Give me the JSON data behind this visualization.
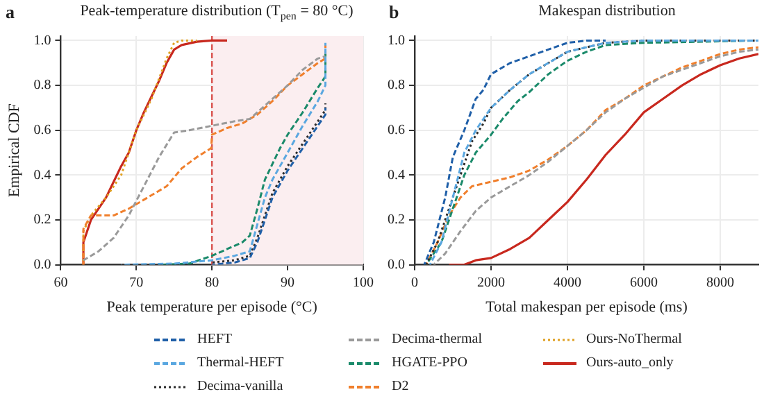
{
  "chart_data": [
    {
      "type": "line",
      "title": "Peak-temperature distribution (T$_{pen}$ = 80 °C)",
      "xlabel": "Peak temperature per episode (°C)",
      "ylabel": "Empirical CDF",
      "annotations": [
        "a"
      ],
      "xlim": [
        60,
        100
      ],
      "xticks": [
        60,
        70,
        80,
        90,
        100
      ],
      "ylim": [
        0,
        1.02
      ],
      "yticks": [
        {
          "value": 0,
          "label": "0.0"
        },
        {
          "value": 0.2,
          "label": "0.2"
        },
        {
          "value": 0.4,
          "label": "0.4"
        },
        {
          "value": 0.6,
          "label": "0.6"
        },
        {
          "value": 0.8,
          "label": "0.8"
        },
        {
          "value": 1,
          "label": "1.0"
        }
      ],
      "grid": true,
      "legend": "bottom",
      "marker": "none",
      "ref_lines": [
        {
          "axis": "x",
          "value": 80,
          "color": "#d9534f",
          "line_style": "dashed"
        }
      ],
      "bands": [
        {
          "axis": "x",
          "from": 80,
          "to": 100,
          "color": "#fbeef0"
        }
      ],
      "series": [
        {
          "name": "HEFT",
          "color": "#1f5fa8",
          "line_style": "dashed",
          "x": [
            80,
            83,
            85,
            86,
            87,
            88,
            90,
            92,
            94,
            95,
            95
          ],
          "values": [
            0,
            0.01,
            0.03,
            0.1,
            0.2,
            0.3,
            0.42,
            0.52,
            0.62,
            0.67,
            0.7
          ]
        },
        {
          "name": "Thermal-HEFT",
          "color": "#5aa7e0",
          "line_style": "dashed",
          "x": [
            68,
            75,
            80,
            83,
            85,
            86,
            87,
            88,
            90,
            92,
            94,
            95,
            95
          ],
          "values": [
            0,
            0.005,
            0.02,
            0.04,
            0.06,
            0.18,
            0.3,
            0.38,
            0.5,
            0.62,
            0.73,
            0.8,
            0.99
          ]
        },
        {
          "name": "Decima-vanilla",
          "color": "#2b2b2b",
          "line_style": "dotted",
          "x": [
            80,
            83,
            85,
            86,
            87,
            88,
            90,
            92,
            94,
            95,
            95
          ],
          "values": [
            0.01,
            0.02,
            0.04,
            0.12,
            0.22,
            0.32,
            0.44,
            0.54,
            0.64,
            0.69,
            0.72
          ]
        },
        {
          "name": "Decima-thermal",
          "color": "#9a9a9a",
          "line_style": "dashed",
          "x": [
            63,
            65,
            67,
            69,
            71,
            73,
            75,
            77,
            80,
            83,
            85,
            88,
            90,
            92,
            94,
            95
          ],
          "values": [
            0.02,
            0.06,
            0.12,
            0.22,
            0.35,
            0.48,
            0.59,
            0.6,
            0.62,
            0.64,
            0.65,
            0.74,
            0.8,
            0.87,
            0.92,
            0.93
          ]
        },
        {
          "name": "HGATE-PPO",
          "color": "#1a8a6a",
          "line_style": "dashed",
          "x": [
            73,
            77,
            80,
            82,
            84,
            85,
            86,
            87,
            88,
            89,
            90,
            92,
            94,
            95,
            95
          ],
          "values": [
            0,
            0.005,
            0.04,
            0.07,
            0.1,
            0.13,
            0.25,
            0.38,
            0.45,
            0.52,
            0.58,
            0.68,
            0.79,
            0.84,
            0.94
          ]
        },
        {
          "name": "D2",
          "color": "#f07f2c",
          "line_style": "dashed",
          "x": [
            63,
            63,
            64,
            67,
            69,
            71,
            74,
            76,
            78,
            79.9,
            80,
            82,
            84,
            86,
            88,
            90,
            92,
            94,
            95,
            95
          ],
          "values": [
            0,
            0.16,
            0.22,
            0.22,
            0.25,
            0.29,
            0.35,
            0.43,
            0.48,
            0.52,
            0.58,
            0.61,
            0.63,
            0.67,
            0.73,
            0.8,
            0.85,
            0.9,
            0.92,
            0.98
          ]
        },
        {
          "name": "Ours-NoThermal",
          "color": "#e0a020",
          "line_style": "dotted",
          "x": [
            63,
            63,
            64,
            66,
            68,
            69,
            70,
            72,
            74,
            75,
            76,
            78
          ],
          "values": [
            0,
            0.15,
            0.22,
            0.3,
            0.4,
            0.5,
            0.6,
            0.74,
            0.92,
            0.99,
            1,
            1
          ]
        },
        {
          "name": "Ours-auto_only",
          "color": "#c8281e",
          "line_style": "solid",
          "x": [
            63,
            63,
            64,
            66,
            67,
            68,
            69,
            70,
            71,
            72,
            73,
            74,
            75,
            76,
            78,
            80,
            82
          ],
          "values": [
            0,
            0.1,
            0.2,
            0.3,
            0.37,
            0.44,
            0.5,
            0.6,
            0.68,
            0.75,
            0.82,
            0.9,
            0.96,
            0.98,
            0.995,
            1,
            1
          ]
        }
      ]
    },
    {
      "type": "line",
      "title": "Makespan distribution",
      "xlabel": "Total makespan per episode (ms)",
      "annotations": [
        "b"
      ],
      "xlim": [
        0,
        9000
      ],
      "xticks": [
        0,
        2000,
        4000,
        6000,
        8000
      ],
      "ylim": [
        0,
        1.02
      ],
      "yticks": [
        {
          "value": 0,
          "label": "0.0"
        },
        {
          "value": 0.2,
          "label": "0.2"
        },
        {
          "value": 0.4,
          "label": "0.4"
        },
        {
          "value": 0.6,
          "label": "0.6"
        },
        {
          "value": 0.8,
          "label": "0.8"
        },
        {
          "value": 1,
          "label": "1.0"
        }
      ],
      "grid": true,
      "legend": "bottom",
      "marker": "none",
      "series": [
        {
          "name": "HEFT",
          "color": "#1f5fa8",
          "line_style": "dashed",
          "x": [
            250,
            500,
            800,
            1000,
            1300,
            1600,
            1800,
            2000,
            2500,
            3000,
            3500,
            4000,
            4500,
            5000
          ],
          "values": [
            0,
            0.1,
            0.3,
            0.48,
            0.6,
            0.74,
            0.78,
            0.85,
            0.9,
            0.93,
            0.96,
            0.99,
            1,
            1
          ]
        },
        {
          "name": "Thermal-HEFT",
          "color": "#5aa7e0",
          "line_style": "dashed",
          "x": [
            400,
            700,
            1000,
            1300,
            1600,
            2000,
            2500,
            3000,
            3500,
            4000,
            5000,
            6000,
            9000
          ],
          "values": [
            0,
            0.1,
            0.3,
            0.5,
            0.6,
            0.7,
            0.78,
            0.85,
            0.9,
            0.95,
            0.99,
            1,
            1
          ]
        },
        {
          "name": "Decima-vanilla",
          "color": "#2b2b2b",
          "line_style": "dotted",
          "x": [
            300,
            600,
            900,
            1200,
            1500,
            1800,
            2000,
            2500,
            3000,
            3500,
            4000,
            5000,
            6000,
            9000
          ],
          "values": [
            0,
            0.1,
            0.25,
            0.4,
            0.55,
            0.63,
            0.7,
            0.78,
            0.85,
            0.9,
            0.95,
            0.99,
            1,
            1
          ]
        },
        {
          "name": "Decima-thermal",
          "color": "#9a9a9a",
          "line_style": "dashed",
          "x": [
            500,
            800,
            1200,
            1600,
            2000,
            2500,
            3000,
            3500,
            4000,
            4500,
            5000,
            5500,
            6000,
            6500,
            7000,
            7500,
            8000,
            8500,
            9000
          ],
          "values": [
            0,
            0.05,
            0.15,
            0.24,
            0.3,
            0.35,
            0.4,
            0.46,
            0.53,
            0.6,
            0.68,
            0.74,
            0.79,
            0.84,
            0.87,
            0.9,
            0.93,
            0.95,
            0.96
          ]
        },
        {
          "name": "HGATE-PPO",
          "color": "#1a8a6a",
          "line_style": "dashed",
          "x": [
            300,
            700,
            1000,
            1300,
            1600,
            2000,
            2300,
            2700,
            3000,
            3500,
            4000,
            4500,
            5000,
            6000,
            9000
          ],
          "values": [
            0,
            0.1,
            0.25,
            0.4,
            0.5,
            0.58,
            0.65,
            0.73,
            0.77,
            0.85,
            0.91,
            0.95,
            0.98,
            0.99,
            1
          ]
        },
        {
          "name": "D2",
          "color": "#f07f2c",
          "line_style": "dashed",
          "x": [
            300,
            600,
            900,
            1200,
            1500,
            2000,
            2500,
            3000,
            3500,
            4000,
            4500,
            5000,
            5500,
            6000,
            6500,
            7000,
            7500,
            8000,
            8500,
            9000
          ],
          "values": [
            0,
            0.1,
            0.22,
            0.3,
            0.35,
            0.37,
            0.39,
            0.42,
            0.47,
            0.53,
            0.6,
            0.69,
            0.74,
            0.8,
            0.84,
            0.88,
            0.91,
            0.94,
            0.96,
            0.97
          ]
        },
        {
          "name": "Ours-auto_only",
          "color": "#c8281e",
          "line_style": "solid",
          "x": [
            900,
            1300,
            1600,
            2000,
            2500,
            3000,
            3500,
            4000,
            4500,
            5000,
            5500,
            6000,
            6500,
            7000,
            7500,
            8000,
            8500,
            9000
          ],
          "values": [
            0,
            0,
            0.02,
            0.03,
            0.07,
            0.12,
            0.2,
            0.28,
            0.38,
            0.49,
            0.58,
            0.68,
            0.74,
            0.8,
            0.85,
            0.89,
            0.92,
            0.94
          ]
        }
      ]
    }
  ]
}
